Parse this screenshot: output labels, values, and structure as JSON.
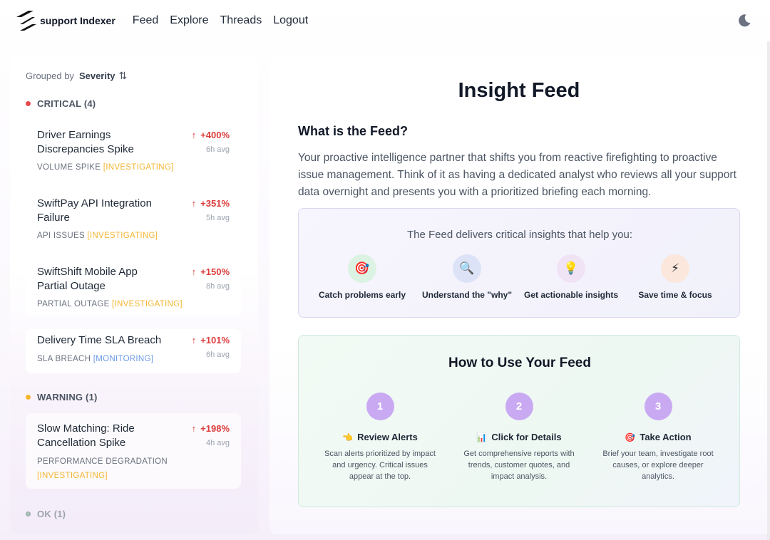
{
  "app": {
    "brand_text": "support Indexer",
    "nav": [
      {
        "label": "Feed"
      },
      {
        "label": "Explore"
      },
      {
        "label": "Threads"
      },
      {
        "label": "Logout"
      }
    ],
    "theme_icon": "moon-icon"
  },
  "sidebar": {
    "grouped_label": "Grouped by",
    "grouped_value": "Severity",
    "sort_icon": "sort-arrows-icon",
    "groups": [
      {
        "label": "CRITICAL (4)",
        "color": "#e5484d"
      },
      {
        "label": "WARNING (1)",
        "color": "#f5b52e"
      },
      {
        "label": "OK (1)",
        "color": "#9ca3af"
      }
    ],
    "items": [
      {
        "title": "Driver Earnings Discrepancies Spike",
        "change": "+400%",
        "avg": "6h avg",
        "category": "VOLUME SPIKE",
        "status": "[INVESTIGATING]"
      },
      {
        "title": "SwiftPay API Integration Failure",
        "change": "+351%",
        "avg": "5h avg",
        "category": "API ISSUES",
        "status": "[INVESTIGATING]"
      },
      {
        "title": "SwiftShift Mobile App Partial Outage",
        "change": "+150%",
        "avg": "8h avg",
        "category": "PARTIAL OUTAGE",
        "status": "[INVESTIGATING]"
      },
      {
        "title": "Delivery Time SLA Breach",
        "change": "+101%",
        "avg": "6h avg",
        "category": "SLA BREACH",
        "status": "[MONITORING]"
      },
      {
        "title": "Slow Matching: Ride Cancellation Spike",
        "change": "+198%",
        "avg": "4h avg",
        "category": "PERFORMANCE DEGRADATION",
        "status": "[INVESTIGATING]"
      }
    ]
  },
  "main": {
    "title": "Insight Feed",
    "what_heading": "What is the Feed?",
    "intro": "Your proactive intelligence partner that shifts you from reactive firefighting to proactive issue management. Think of it as having a dedicated analyst who reviews all your support data overnight and presents you with a prioritized briefing each morning.",
    "delivers_lead": "The Feed delivers critical insights that help you:",
    "features": [
      {
        "label": "Catch problems early",
        "icon": "target-icon",
        "glyph": "🎯"
      },
      {
        "label": "Understand the \"why\"",
        "icon": "magnifier-icon",
        "glyph": "🔍"
      },
      {
        "label": "Get actionable insights",
        "icon": "lightbulb-icon",
        "glyph": "💡"
      },
      {
        "label": "Save time & focus",
        "icon": "lightning-icon",
        "glyph": "⚡"
      }
    ],
    "how_heading": "How to Use Your Feed",
    "steps": [
      {
        "num": "1",
        "emoji": "👈",
        "title": "Review Alerts",
        "desc": "Scan alerts prioritized by impact and urgency. Critical issues appear at the top."
      },
      {
        "num": "2",
        "emoji": "📊",
        "title": "Click for Details",
        "desc": "Get comprehensive reports with trends, customer quotes, and impact analysis."
      },
      {
        "num": "3",
        "emoji": "🎯",
        "title": "Take Action",
        "desc": "Brief your team, investigate root causes, or explore deeper analytics."
      }
    ]
  }
}
